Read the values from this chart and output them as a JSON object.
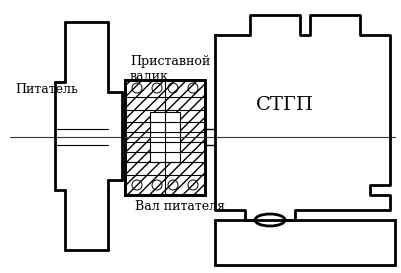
{
  "title": "",
  "bg_color": "#ffffff",
  "line_color": "#000000",
  "lw": 1.2,
  "text_питатель": "Питатель",
  "text_приставной": "Приставной\nвалик",
  "text_вал": "Вал питателя",
  "text_стгп": "СТГП"
}
